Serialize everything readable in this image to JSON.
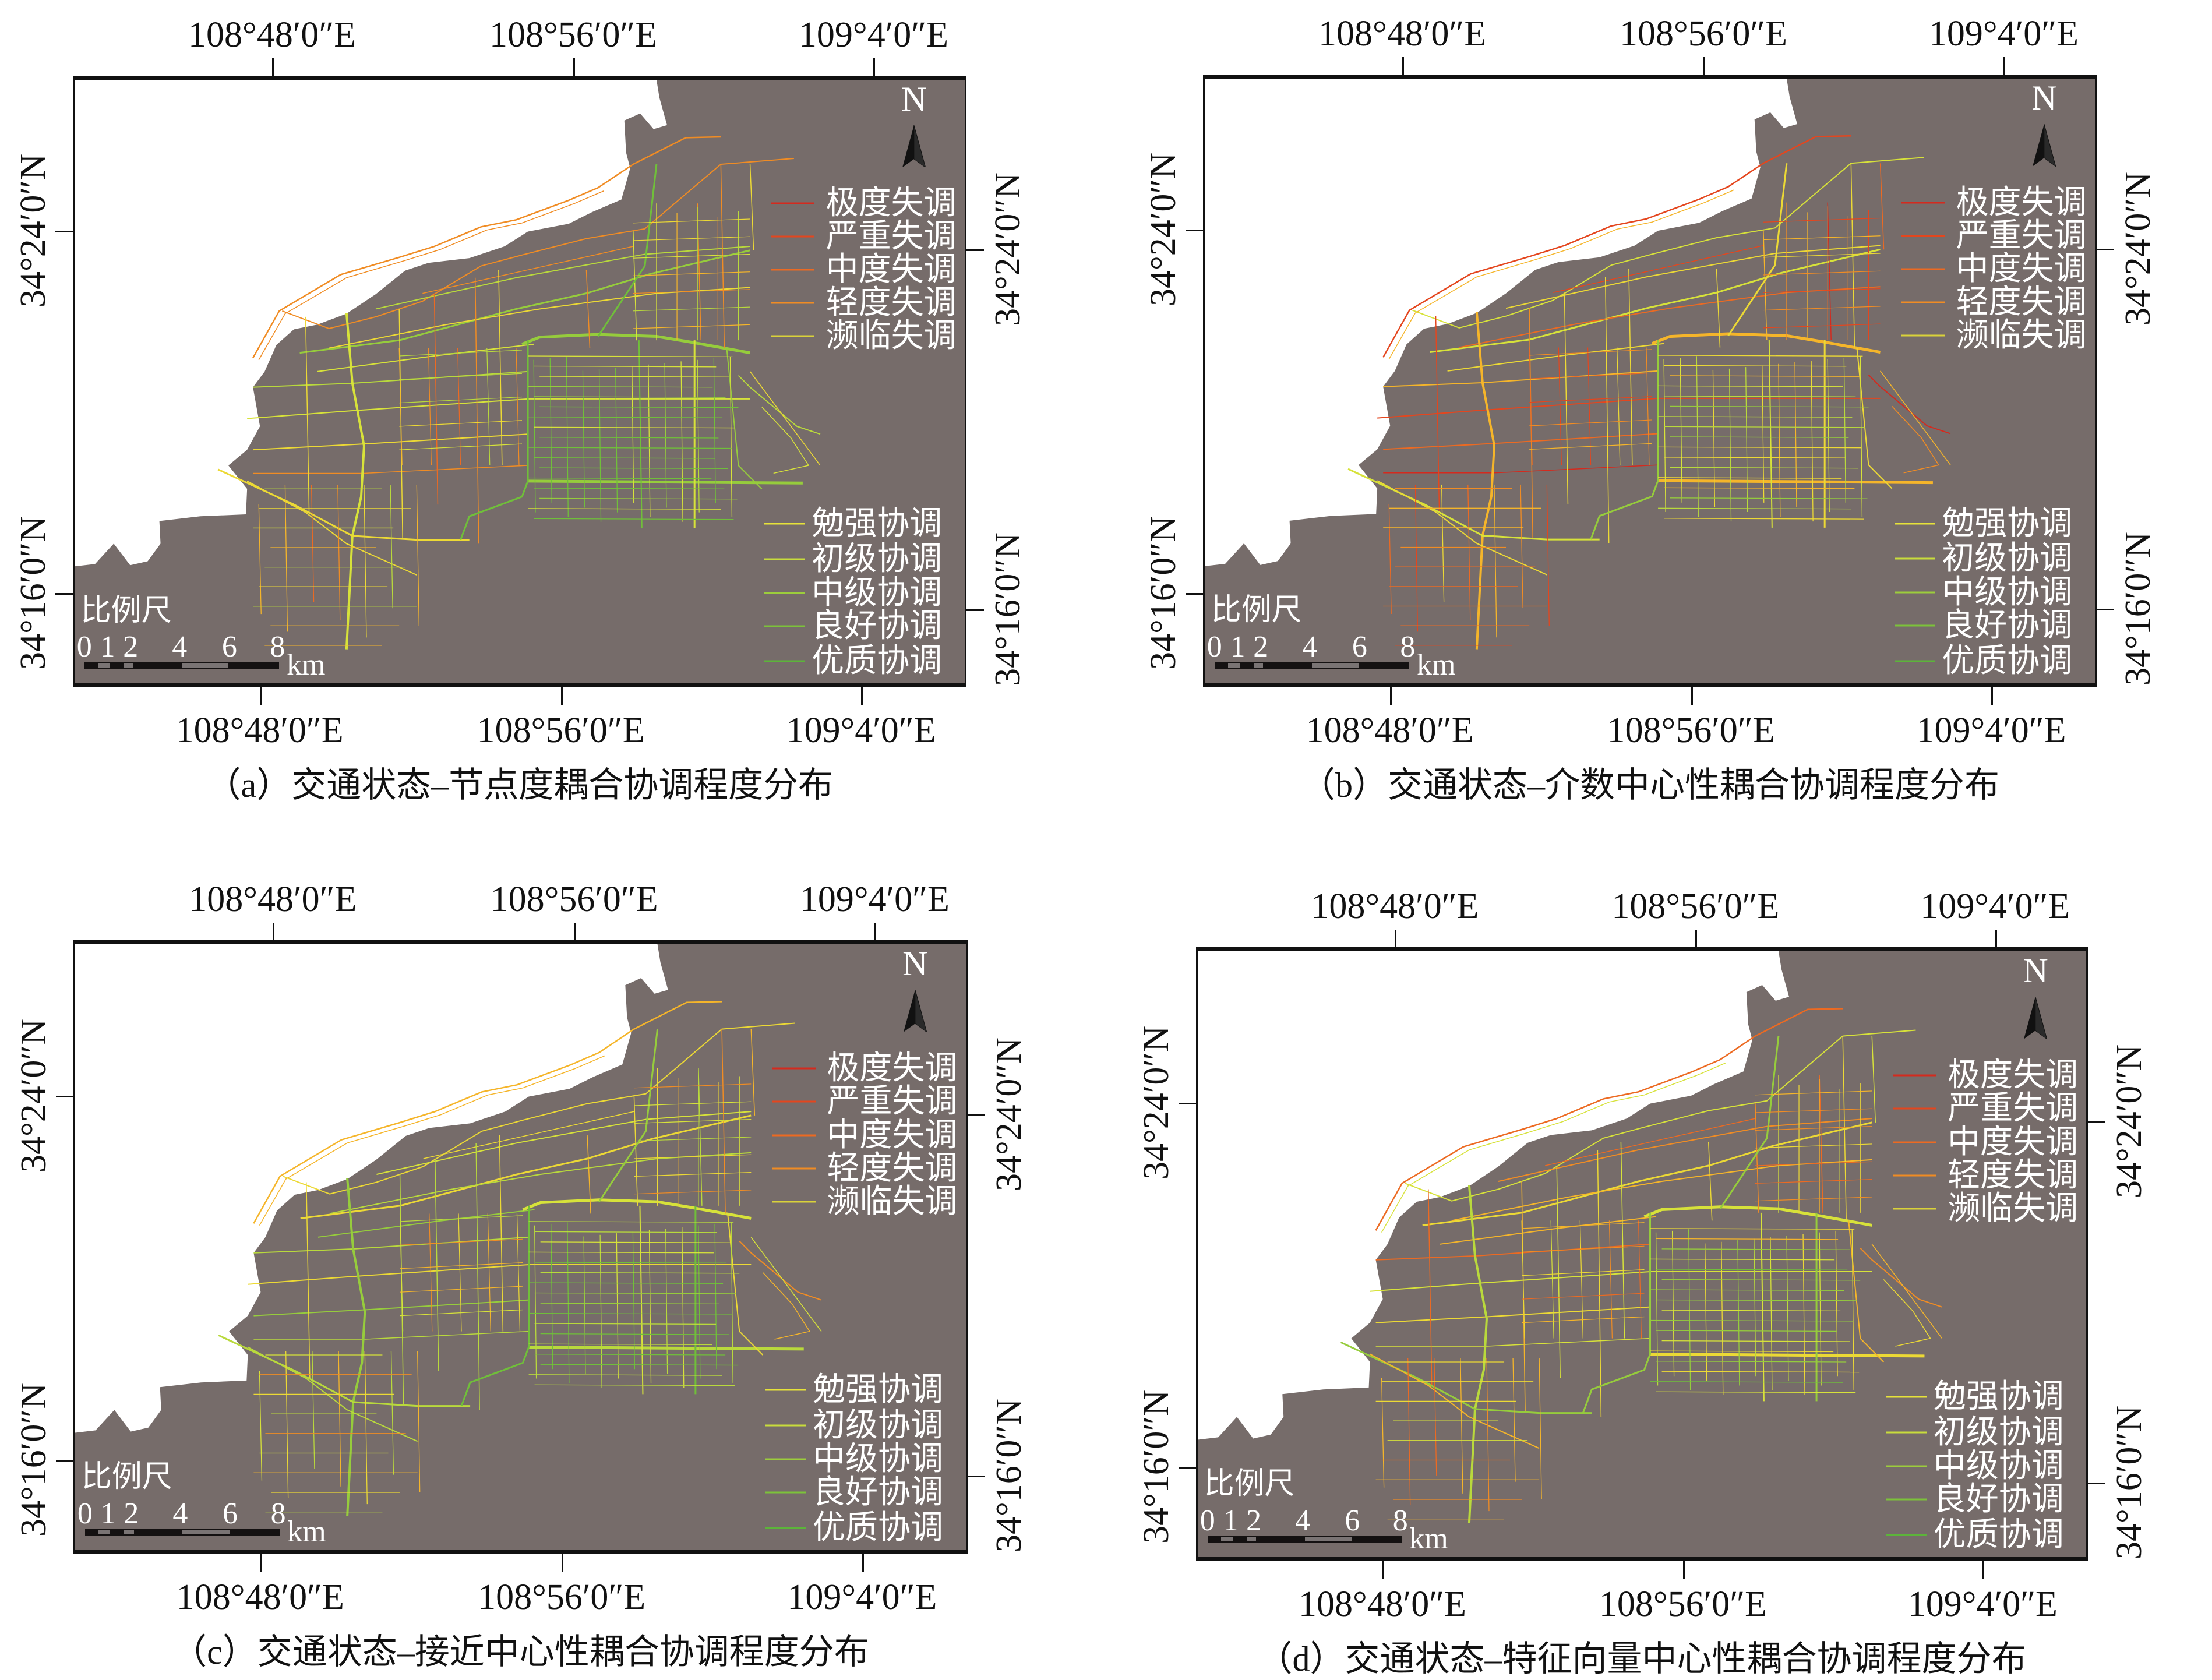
{
  "common": {
    "lon_labels": [
      "108°48′0″E",
      "108°56′0″E",
      "109°4′0″E"
    ],
    "lat_labels": [
      "34°24′0″N",
      "34°16′0″N"
    ],
    "north_label": "N",
    "scale_title": "比例尺",
    "scale_ticks": [
      "0",
      "1",
      "2",
      "4",
      "6",
      "8"
    ],
    "scale_unit": "km",
    "legend_disorder": [
      {
        "label": "极度失调",
        "color": "#d42a1e"
      },
      {
        "label": "严重失调",
        "color": "#e4461e"
      },
      {
        "label": "中度失调",
        "color": "#ec6a22"
      },
      {
        "label": "轻度失调",
        "color": "#f08c24"
      },
      {
        "label": "濒临失调",
        "color": "#d9d23a"
      }
    ],
    "legend_coordination": [
      {
        "label": "勉强协调",
        "color": "#e6e23a"
      },
      {
        "label": "初级协调",
        "color": "#c8dc3c"
      },
      {
        "label": "中级协调",
        "color": "#9ccd3c"
      },
      {
        "label": "良好协调",
        "color": "#7cc23a"
      },
      {
        "label": "优质协调",
        "color": "#5cb43a"
      }
    ],
    "colors": {
      "land": "#766c6a",
      "background": "#ffffff"
    }
  },
  "panels": [
    {
      "id": "a",
      "caption": "（a）交通状态–节点度耦合协调程度分布"
    },
    {
      "id": "b",
      "caption": "（b）交通状态–介数中心性耦合协调程度分布"
    },
    {
      "id": "c",
      "caption": "（c）交通状态–接近中心性耦合协调程度分布"
    },
    {
      "id": "d",
      "caption": "（d）交通状态–特征向量中心性耦合协调程度分布"
    }
  ]
}
